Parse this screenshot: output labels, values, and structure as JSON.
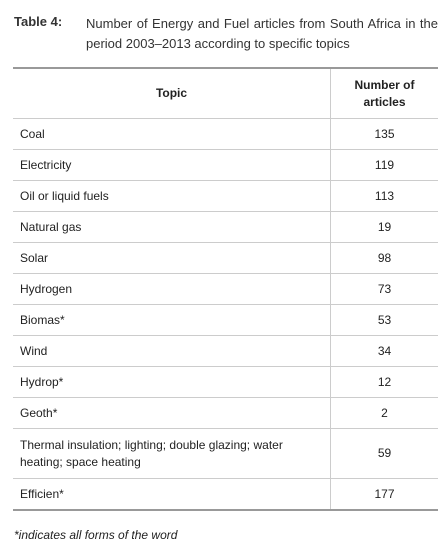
{
  "caption": {
    "label": "Table 4:",
    "text": "Number of Energy and Fuel articles from South Africa in the period 2003–2013 according to specific topics"
  },
  "table": {
    "header": [
      "Topic",
      "Number of articles"
    ],
    "rows": [
      [
        "Coal",
        135
      ],
      [
        "Electricity",
        119
      ],
      [
        "Oil or liquid fuels",
        113
      ],
      [
        "Natural gas",
        19
      ],
      [
        "Solar",
        98
      ],
      [
        "Hydrogen",
        73
      ],
      [
        "Biomas*",
        53
      ],
      [
        "Wind",
        34
      ],
      [
        "Hydrop*",
        12
      ],
      [
        "Geoth*",
        2
      ],
      [
        "Thermal insulation; lighting; double glazing; water heating; space heating",
        59
      ],
      [
        "Efficien*",
        177
      ]
    ]
  },
  "footnote": "*indicates all forms of the word"
}
